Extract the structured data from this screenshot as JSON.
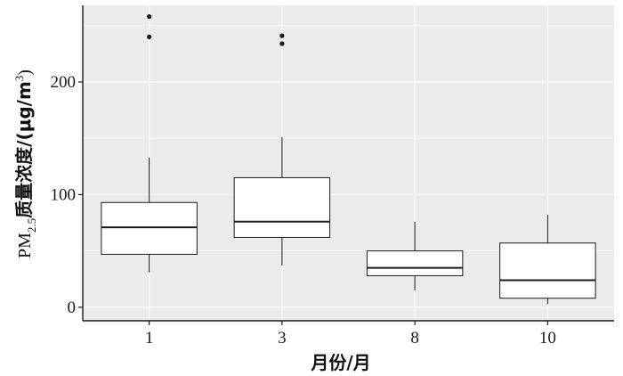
{
  "chart_data": {
    "type": "boxplot",
    "xlabel": "月份/月",
    "ylabel": {
      "prefix": "PM",
      "subscript": "2.5",
      "middle": "质量浓度/(μg/m",
      "superscript": "3",
      "suffix": ")"
    },
    "categories": [
      "1",
      "3",
      "8",
      "10"
    ],
    "ylim": [
      -12,
      268
    ],
    "yticks": [
      0,
      100,
      200
    ],
    "grid": true,
    "boxes": [
      {
        "category": "1",
        "whisker_low": 31,
        "q1": 47,
        "median": 71,
        "q3": 93,
        "whisker_high": 133,
        "outliers": [
          240,
          258
        ]
      },
      {
        "category": "3",
        "whisker_low": 37,
        "q1": 62,
        "median": 76,
        "q3": 115,
        "whisker_high": 151,
        "outliers": [
          234,
          241
        ]
      },
      {
        "category": "8",
        "whisker_low": 15,
        "q1": 28,
        "median": 35,
        "q3": 50,
        "whisker_high": 76,
        "outliers": []
      },
      {
        "category": "10",
        "whisker_low": 3,
        "q1": 8,
        "median": 24,
        "q3": 57,
        "whisker_high": 82,
        "outliers": []
      }
    ]
  },
  "colors": {
    "panel": "#ebebeb",
    "grid": "#ffffff",
    "box_fill": "#ffffff",
    "box_stroke": "#1a1a1a",
    "axis": "#1a1a1a"
  }
}
